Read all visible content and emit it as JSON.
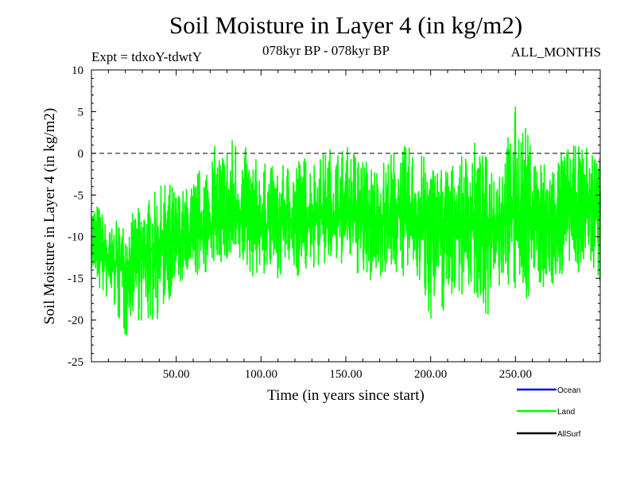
{
  "header": {
    "title": "Soil Moisture in Layer 4 (in kg/m2)",
    "subtitle": "078kyr BP - 078kyr BP",
    "expt": "Expt = tdxoY-tdwtY",
    "months": "ALL_MONTHS"
  },
  "chart_data": {
    "type": "line",
    "title": "Soil Moisture in Layer 4 (in kg/m2)",
    "xlabel": "Time (in years since start)",
    "ylabel": "Soil Moisture in Layer 4 (in kg/m2)",
    "xlim": [
      0,
      300
    ],
    "ylim": [
      -25,
      10
    ],
    "x_ticks": [
      50,
      100,
      150,
      200,
      250
    ],
    "x_tick_labels": [
      "50.00",
      "100.00",
      "150.00",
      "200.00",
      "250.00"
    ],
    "y_ticks": [
      10,
      5,
      0,
      -5,
      -10,
      -15,
      -20,
      -25
    ],
    "y_tick_labels": [
      "10",
      "5",
      "0",
      "-5",
      "-10",
      "-15",
      "-20",
      "-25"
    ],
    "reference_line": {
      "y": 0,
      "style": "dashed"
    },
    "series": [
      {
        "name": "Land",
        "color": "#00ff00",
        "x": [
          0,
          5,
          10,
          15,
          20,
          25,
          30,
          35,
          40,
          45,
          50,
          55,
          60,
          65,
          70,
          75,
          80,
          85,
          90,
          95,
          100,
          105,
          110,
          115,
          120,
          125,
          130,
          135,
          140,
          145,
          150,
          155,
          160,
          165,
          170,
          175,
          180,
          185,
          190,
          195,
          200,
          205,
          210,
          215,
          220,
          225,
          230,
          235,
          240,
          245,
          250,
          255,
          260,
          265,
          270,
          275,
          280,
          285,
          290,
          295,
          300
        ],
        "mean": [
          -11,
          -12,
          -13,
          -13,
          -13.5,
          -13,
          -12,
          -11.5,
          -11,
          -11,
          -11,
          -10.5,
          -10,
          -9.5,
          -9,
          -8.5,
          -8,
          -8,
          -8,
          -8,
          -8.5,
          -8.5,
          -8.5,
          -8,
          -8,
          -8,
          -8,
          -7.5,
          -7.5,
          -7.5,
          -7.5,
          -7.5,
          -8,
          -8,
          -8,
          -7.5,
          -7.5,
          -7.5,
          -7.5,
          -8,
          -8,
          -8,
          -8,
          -8,
          -8,
          -8,
          -8.5,
          -8.5,
          -8,
          -7.5,
          -7,
          -7,
          -7.5,
          -8,
          -8,
          -7.5,
          -7,
          -6.5,
          -6,
          -6.5,
          -7
        ],
        "low": [
          -14,
          -17,
          -18,
          -20,
          -23,
          -19,
          -21,
          -21,
          -20,
          -18,
          -16,
          -16,
          -15,
          -15,
          -14,
          -13,
          -14,
          -14,
          -14,
          -15,
          -15,
          -15,
          -15,
          -14,
          -15,
          -15,
          -14,
          -14,
          -14,
          -14,
          -13,
          -14,
          -16,
          -16,
          -15,
          -14,
          -15,
          -15,
          -15,
          -17,
          -20,
          -21,
          -18,
          -17,
          -17,
          -17,
          -19,
          -20,
          -17,
          -16,
          -18,
          -19,
          -16,
          -16,
          -17,
          -16,
          -14,
          -15,
          -14,
          -14,
          -16
        ],
        "high": [
          -5,
          -6,
          -9,
          -8,
          -8,
          -7,
          -6,
          -5,
          -4,
          -3,
          -4,
          -4,
          -3,
          -1,
          1,
          1,
          2,
          3,
          1,
          0,
          -1,
          -1,
          -2,
          -1,
          0,
          0,
          0,
          0,
          1,
          1,
          1,
          1,
          0,
          -1,
          -1,
          0,
          1,
          1,
          1,
          0,
          -1,
          -1,
          -1,
          -1,
          0,
          2,
          0,
          0,
          0,
          2,
          6,
          4,
          1,
          0,
          -1,
          0,
          1,
          1,
          1,
          1,
          1
        ]
      },
      {
        "name": "Ocean",
        "color": "#0000ff",
        "x": [],
        "values": []
      },
      {
        "name": "AllSurf",
        "color": "#000000",
        "x": [],
        "values": []
      }
    ],
    "legend": {
      "position": "bottom-right",
      "entries": [
        {
          "name": "Ocean",
          "color": "#0000ff"
        },
        {
          "name": "Land",
          "color": "#00ff00"
        },
        {
          "name": "AllSurf",
          "color": "#000000"
        }
      ]
    }
  }
}
